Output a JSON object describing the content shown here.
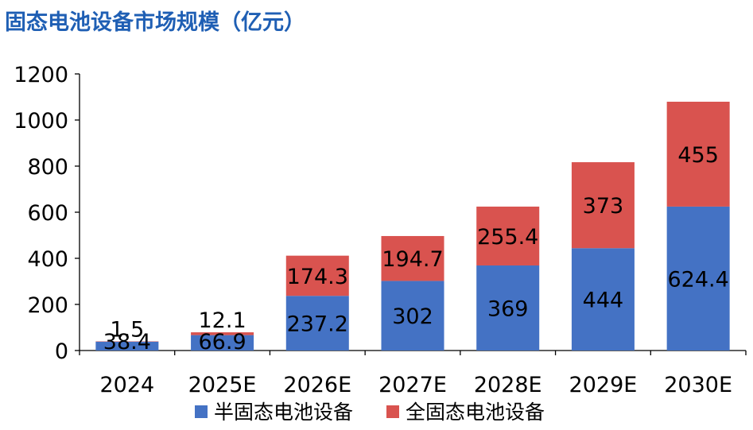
{
  "chart_data": {
    "type": "bar",
    "stacked": true,
    "title": "固态电池设备市场规模（亿元）",
    "categories": [
      "2024",
      "2025E",
      "2026E",
      "2027E",
      "2028E",
      "2029E",
      "2030E"
    ],
    "series": [
      {
        "name": "半固态电池设备",
        "color": "#4472c4",
        "values": [
          38.4,
          66.9,
          237.2,
          302,
          369,
          444,
          624.4
        ]
      },
      {
        "name": "全固态电池设备",
        "color": "#d9534f",
        "values": [
          1.5,
          12.1,
          174.3,
          194.7,
          255.4,
          373,
          455
        ]
      }
    ],
    "ylim": [
      0,
      1200
    ],
    "yticks": [
      0,
      200,
      400,
      600,
      800,
      1000,
      1200
    ],
    "xlabel": "",
    "ylabel": "",
    "legend_position": "bottom",
    "grid": false
  }
}
